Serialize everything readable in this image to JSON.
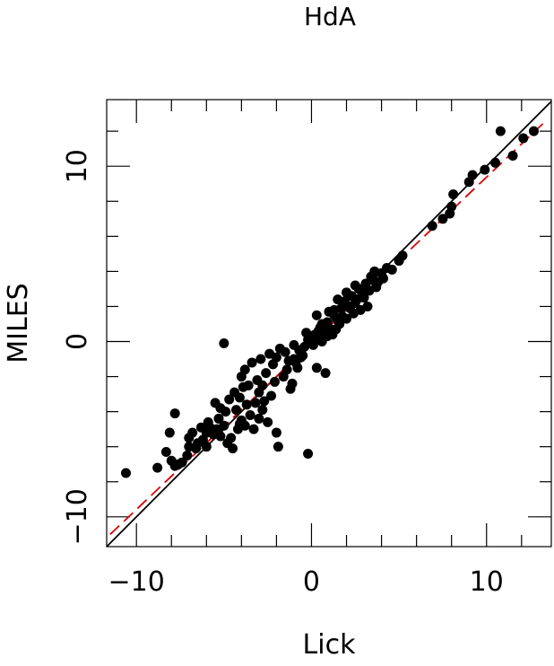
{
  "chart_data": {
    "type": "scatter",
    "title": "HdA",
    "xlabel": "Lick",
    "ylabel": "MILES",
    "xlim": [
      -11.7,
      13.7
    ],
    "ylim": [
      -11.7,
      13.8
    ],
    "xticks": [
      -10,
      0,
      10
    ],
    "yticks": [
      -10,
      0,
      10
    ],
    "x_minor_step": 2,
    "y_minor_step": 2,
    "grid": false,
    "lines": [
      {
        "style": "solid",
        "color": "#000000",
        "x": [
          -11.7,
          13.7
        ],
        "y": [
          -11.7,
          13.7
        ]
      },
      {
        "style": "dashed",
        "color": "#dd0000",
        "x": [
          -11.5,
          13.4
        ],
        "y": [
          -11.0,
          12.6
        ]
      }
    ],
    "points": [
      [
        -10.6,
        -7.5
      ],
      [
        -8.8,
        -7.2
      ],
      [
        -8.3,
        -6.3
      ],
      [
        -8.0,
        -6.8
      ],
      [
        -7.8,
        -7.1
      ],
      [
        -7.6,
        -7.0
      ],
      [
        -7.4,
        -6.9
      ],
      [
        -7.1,
        -6.5
      ],
      [
        -7.0,
        -6.0
      ],
      [
        -6.6,
        -6.1
      ],
      [
        -7.8,
        -4.1
      ],
      [
        -8.1,
        -5.2
      ],
      [
        -7.0,
        -5.5
      ],
      [
        -6.5,
        -5.8
      ],
      [
        -6.2,
        -5.6
      ],
      [
        -6.0,
        -5.2
      ],
      [
        -5.8,
        -4.9
      ],
      [
        -5.6,
        -5.3
      ],
      [
        -5.4,
        -5.0
      ],
      [
        -5.2,
        -5.4
      ],
      [
        -5.0,
        -4.8
      ],
      [
        -4.8,
        -5.8
      ],
      [
        -4.6,
        -5.5
      ],
      [
        -4.5,
        -6.1
      ],
      [
        -4.2,
        -5.0
      ],
      [
        -4.0,
        -4.5
      ],
      [
        -3.8,
        -4.8
      ],
      [
        -3.5,
        -4.2
      ],
      [
        -3.3,
        -5.0
      ],
      [
        -3.0,
        -4.4
      ],
      [
        -2.8,
        -3.9
      ],
      [
        -2.5,
        -4.6
      ],
      [
        -5.0,
        -0.1
      ],
      [
        -5.5,
        -3.5
      ],
      [
        -5.2,
        -3.8
      ],
      [
        -4.9,
        -4.0
      ],
      [
        -4.7,
        -3.3
      ],
      [
        -4.4,
        -2.9
      ],
      [
        -4.1,
        -3.2
      ],
      [
        -4.0,
        -2.0
      ],
      [
        -3.8,
        -1.6
      ],
      [
        -3.6,
        -2.5
      ],
      [
        -3.4,
        -1.2
      ],
      [
        -3.1,
        -2.2
      ],
      [
        -2.9,
        -1.0
      ],
      [
        -2.6,
        -1.8
      ],
      [
        -2.4,
        -0.7
      ],
      [
        -2.2,
        -1.3
      ],
      [
        -2.0,
        -0.9
      ],
      [
        -1.8,
        -0.4
      ],
      [
        -1.5,
        -0.6
      ],
      [
        -1.3,
        -1.1
      ],
      [
        -1.1,
        -2.4
      ],
      [
        -1.0,
        -0.2
      ],
      [
        -0.8,
        -1.5
      ],
      [
        -0.6,
        -0.9
      ],
      [
        -0.4,
        -0.3
      ],
      [
        -0.2,
        0.1
      ],
      [
        0.0,
        0.0
      ],
      [
        0.2,
        0.4
      ],
      [
        0.4,
        0.2
      ],
      [
        0.5,
        0.8
      ],
      [
        0.7,
        0.5
      ],
      [
        0.9,
        1.1
      ],
      [
        1.1,
        0.7
      ],
      [
        1.3,
        1.5
      ],
      [
        1.5,
        1.2
      ],
      [
        1.7,
        1.9
      ],
      [
        1.9,
        2.3
      ],
      [
        2.1,
        2.0
      ],
      [
        2.3,
        2.6
      ],
      [
        2.5,
        2.2
      ],
      [
        2.7,
        3.0
      ],
      [
        2.9,
        2.7
      ],
      [
        3.1,
        3.3
      ],
      [
        3.3,
        2.9
      ],
      [
        3.5,
        3.5
      ],
      [
        3.7,
        3.1
      ],
      [
        4.0,
        3.9
      ],
      [
        4.3,
        4.2
      ],
      [
        1.0,
        1.7
      ],
      [
        1.2,
        0.4
      ],
      [
        1.6,
        1.0
      ],
      [
        2.0,
        1.3
      ],
      [
        2.4,
        1.6
      ],
      [
        2.8,
        1.8
      ],
      [
        3.2,
        2.0
      ],
      [
        0.3,
        1.5
      ],
      [
        0.6,
        1.0
      ],
      [
        0.1,
        -0.2
      ],
      [
        -0.3,
        0.5
      ],
      [
        -0.5,
        -0.8
      ],
      [
        -2.0,
        -5.2
      ],
      [
        -1.9,
        -6.0
      ],
      [
        -0.2,
        -6.4
      ],
      [
        0.3,
        -1.5
      ],
      [
        0.8,
        -1.8
      ],
      [
        -1.2,
        -2.7
      ],
      [
        -2.8,
        -2.5
      ],
      [
        -3.2,
        -3.5
      ],
      [
        -5.9,
        -4.6
      ],
      [
        -6.3,
        -4.9
      ],
      [
        -6.8,
        -5.2
      ],
      [
        -3.7,
        -3.6
      ],
      [
        -2.3,
        -3.1
      ],
      [
        -1.6,
        -2.0
      ],
      [
        -0.9,
        -1.2
      ],
      [
        0.6,
        0.0
      ],
      [
        1.4,
        0.7
      ],
      [
        1.8,
        1.4
      ],
      [
        2.2,
        1.9
      ],
      [
        2.6,
        2.4
      ],
      [
        3.0,
        2.5
      ],
      [
        3.4,
        3.7
      ],
      [
        3.8,
        3.4
      ],
      [
        4.6,
        4.1
      ],
      [
        5.2,
        4.9
      ],
      [
        5.0,
        4.6
      ],
      [
        6.9,
        6.6
      ],
      [
        7.5,
        7.0
      ],
      [
        7.9,
        7.3
      ],
      [
        8.1,
        8.4
      ],
      [
        8.0,
        7.7
      ],
      [
        9.0,
        9.1
      ],
      [
        9.2,
        9.5
      ],
      [
        9.9,
        9.8
      ],
      [
        10.5,
        10.2
      ],
      [
        10.8,
        12.0
      ],
      [
        11.5,
        10.6
      ],
      [
        12.1,
        11.6
      ],
      [
        12.7,
        12.0
      ],
      [
        -4.3,
        -3.9
      ],
      [
        -3.9,
        -2.6
      ],
      [
        -2.7,
        -3.4
      ],
      [
        -1.4,
        -1.6
      ],
      [
        -0.7,
        -0.5
      ],
      [
        0.9,
        0.3
      ],
      [
        1.3,
        1.8
      ],
      [
        2.0,
        2.8
      ],
      [
        2.5,
        3.2
      ],
      [
        -5.3,
        -4.4
      ],
      [
        -4.1,
        -4.7
      ],
      [
        -3.0,
        -2.9
      ],
      [
        -2.1,
        -2.3
      ],
      [
        -1.0,
        -1.0
      ],
      [
        0.4,
        0.6
      ],
      [
        1.5,
        2.4
      ],
      [
        3.6,
        4.0
      ],
      [
        4.1,
        3.6
      ],
      [
        -6.0,
        -6.0
      ]
    ]
  }
}
